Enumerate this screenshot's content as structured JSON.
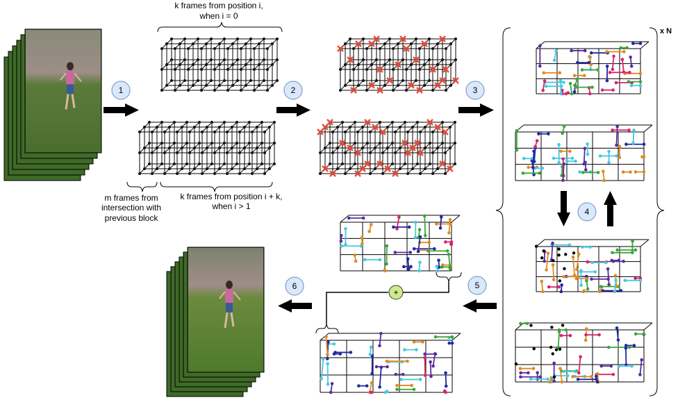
{
  "labels": {
    "top_frames_line1": "k frames from position i,",
    "top_frames_line2": "when i = 0",
    "m_frames_line1": "m frames from",
    "m_frames_line2": "intersection with",
    "m_frames_line3": "previous block",
    "k_frames_line1": "k frames from position i + k,",
    "k_frames_line2": "when i > 1",
    "repeat": "x N",
    "plus": "+"
  },
  "steps": [
    "1",
    "2",
    "3",
    "4",
    "5",
    "6"
  ],
  "colors": {
    "arrow": "#000000",
    "step_fill": "#dae8fc",
    "step_stroke": "#6c8ebf",
    "plus_fill": "#cdeb8b",
    "plus_stroke": "#36393d",
    "cross": "#e74c3c",
    "node": "#111111",
    "palette": [
      "#e08a1e",
      "#3aa63a",
      "#d6246e",
      "#5a2ca0",
      "#1f2aa0",
      "#49c8e0"
    ]
  }
}
